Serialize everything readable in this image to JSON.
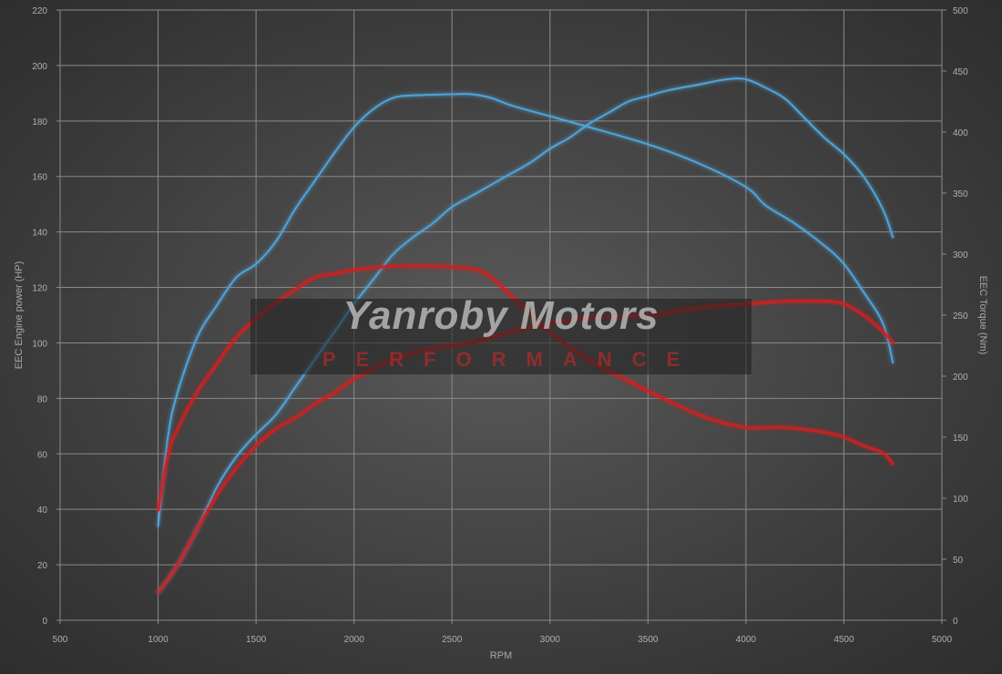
{
  "chart_data": {
    "type": "line",
    "xlabel": "RPM",
    "ylabel_left": "EEC Engine power (HP)",
    "ylabel_right": "EEC Torque (Nm)",
    "xlim": [
      500,
      5000
    ],
    "ylim_left": [
      0,
      220
    ],
    "ylim_right": [
      0,
      500
    ],
    "x_ticks": [
      500,
      1000,
      1500,
      2000,
      2500,
      3000,
      3500,
      4000,
      4500,
      5000
    ],
    "y_ticks_left": [
      0,
      20,
      40,
      60,
      80,
      100,
      120,
      140,
      160,
      180,
      200,
      220
    ],
    "y_ticks_right": [
      0,
      50,
      100,
      150,
      200,
      250,
      300,
      350,
      400,
      450,
      500
    ],
    "grid": true,
    "colors": {
      "tuned": "#4fa3d9",
      "stock": "#d42020"
    },
    "series": [
      {
        "axis": "right",
        "color": "#4fa3d9",
        "points": [
          [
            1000,
            77
          ],
          [
            1050,
            150
          ],
          [
            1100,
            187
          ],
          [
            1200,
            232
          ],
          [
            1300,
            258
          ],
          [
            1400,
            281
          ],
          [
            1500,
            292
          ],
          [
            1600,
            310
          ],
          [
            1700,
            337
          ],
          [
            1800,
            360
          ],
          [
            1900,
            383
          ],
          [
            2000,
            404
          ],
          [
            2100,
            419
          ],
          [
            2200,
            428
          ],
          [
            2300,
            430
          ],
          [
            2500,
            431
          ],
          [
            2600,
            431
          ],
          [
            2700,
            428
          ],
          [
            2800,
            422
          ],
          [
            3000,
            413
          ],
          [
            3200,
            404
          ],
          [
            3500,
            390
          ],
          [
            3750,
            375
          ],
          [
            4000,
            355
          ],
          [
            4100,
            340
          ],
          [
            4250,
            325
          ],
          [
            4400,
            307
          ],
          [
            4500,
            292
          ],
          [
            4600,
            269
          ],
          [
            4700,
            243
          ],
          [
            4750,
            211
          ]
        ]
      },
      {
        "axis": "left",
        "color": "#4fa3d9",
        "points": [
          [
            1000,
            10
          ],
          [
            1100,
            20
          ],
          [
            1200,
            33
          ],
          [
            1300,
            48
          ],
          [
            1400,
            59
          ],
          [
            1500,
            67
          ],
          [
            1600,
            74
          ],
          [
            1700,
            84
          ],
          [
            1800,
            94
          ],
          [
            1900,
            104
          ],
          [
            2000,
            114
          ],
          [
            2100,
            123
          ],
          [
            2200,
            132
          ],
          [
            2300,
            138
          ],
          [
            2400,
            143
          ],
          [
            2500,
            149
          ],
          [
            2600,
            153
          ],
          [
            2700,
            157
          ],
          [
            2800,
            161
          ],
          [
            2900,
            165
          ],
          [
            3000,
            170
          ],
          [
            3100,
            174
          ],
          [
            3200,
            179
          ],
          [
            3300,
            183
          ],
          [
            3400,
            187
          ],
          [
            3500,
            189
          ],
          [
            3600,
            191
          ],
          [
            3750,
            193
          ],
          [
            3900,
            195
          ],
          [
            4000,
            195
          ],
          [
            4100,
            192
          ],
          [
            4200,
            188
          ],
          [
            4300,
            181
          ],
          [
            4400,
            174
          ],
          [
            4500,
            168
          ],
          [
            4600,
            160
          ],
          [
            4700,
            148
          ],
          [
            4750,
            138
          ]
        ]
      },
      {
        "axis": "right",
        "color": "#d42020",
        "points": [
          [
            1000,
            90
          ],
          [
            1050,
            135
          ],
          [
            1100,
            157
          ],
          [
            1200,
            187
          ],
          [
            1300,
            210
          ],
          [
            1400,
            232
          ],
          [
            1500,
            247
          ],
          [
            1600,
            260
          ],
          [
            1700,
            271
          ],
          [
            1800,
            281
          ],
          [
            1900,
            284
          ],
          [
            2000,
            287
          ],
          [
            2200,
            290
          ],
          [
            2400,
            290
          ],
          [
            2600,
            288
          ],
          [
            2700,
            281
          ],
          [
            2800,
            266
          ],
          [
            2900,
            251
          ],
          [
            3000,
            236
          ],
          [
            3200,
            213
          ],
          [
            3400,
            196
          ],
          [
            3600,
            180
          ],
          [
            3800,
            166
          ],
          [
            4000,
            158
          ],
          [
            4200,
            158
          ],
          [
            4400,
            154
          ],
          [
            4500,
            150
          ],
          [
            4600,
            143
          ],
          [
            4700,
            137
          ],
          [
            4750,
            128
          ]
        ]
      },
      {
        "axis": "left",
        "color": "#d42020",
        "points": [
          [
            1000,
            10
          ],
          [
            1100,
            20
          ],
          [
            1200,
            33
          ],
          [
            1300,
            45
          ],
          [
            1400,
            55
          ],
          [
            1500,
            63
          ],
          [
            1600,
            69
          ],
          [
            1700,
            73
          ],
          [
            1800,
            78
          ],
          [
            1900,
            82
          ],
          [
            2000,
            87
          ],
          [
            2200,
            94
          ],
          [
            2400,
            98
          ],
          [
            2600,
            100
          ],
          [
            2800,
            104
          ],
          [
            3000,
            107
          ],
          [
            3200,
            109
          ],
          [
            3500,
            110
          ],
          [
            3800,
            113
          ],
          [
            4000,
            114
          ],
          [
            4200,
            115
          ],
          [
            4400,
            115
          ],
          [
            4500,
            114
          ],
          [
            4600,
            110
          ],
          [
            4700,
            104
          ],
          [
            4750,
            100
          ]
        ]
      }
    ]
  },
  "watermark": {
    "title": "Yanroby Motors",
    "subtitle": "PERFORMANCE"
  }
}
